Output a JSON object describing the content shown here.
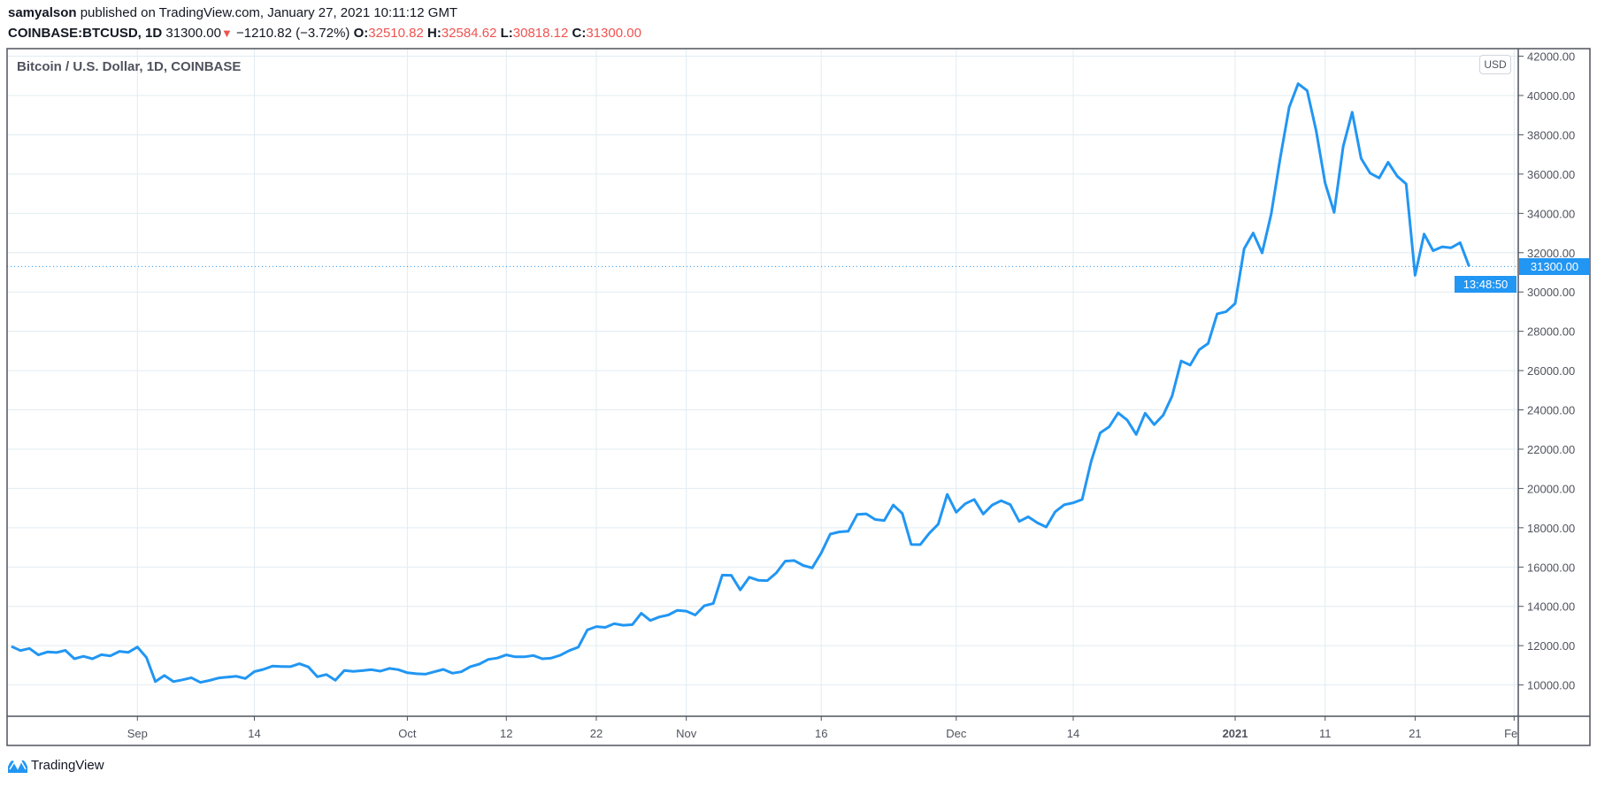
{
  "header": {
    "author": "samyalson",
    "published": "published on TradingView.com, January 27, 2021 10:11:12 GMT",
    "symbol": "COINBASE:BTCUSD, 1D",
    "last": "31300.00",
    "direction_icon": "triangle-down-icon",
    "change": "−1210.82 (−3.72%)",
    "o_label": "O:",
    "o": "32510.82",
    "h_label": "H:",
    "h": "32584.62",
    "l_label": "L:",
    "l": "30818.12",
    "c_label": "C:",
    "c": "31300.00"
  },
  "colors": {
    "line": "#2196f3",
    "down": "#ef5350",
    "grid": "#e1ecf2",
    "axis": "#50535e"
  },
  "price_axis": {
    "currency": "USD",
    "last_price": "31300.00",
    "countdown": "13:48:50"
  },
  "footer": {
    "brand": "TradingView"
  },
  "chart_data": {
    "type": "line",
    "title": "Bitcoin / U.S. Dollar, 1D, COINBASE",
    "ylim": [
      8000,
      42000
    ],
    "grid": true,
    "y_ticks": [
      "42000.00",
      "40000.00",
      "38000.00",
      "36000.00",
      "34000.00",
      "32000.00",
      "30000.00",
      "28000.00",
      "26000.00",
      "24000.00",
      "22000.00",
      "20000.00",
      "18000.00",
      "16000.00",
      "14000.00",
      "12000.00",
      "10000.00"
    ],
    "x_ticks": [
      {
        "date": "2020-09-01",
        "label": "Sep"
      },
      {
        "date": "2020-09-14",
        "label": "14"
      },
      {
        "date": "2020-10-01",
        "label": "Oct"
      },
      {
        "date": "2020-10-12",
        "label": "12"
      },
      {
        "date": "2020-10-22",
        "label": "22"
      },
      {
        "date": "2020-11-01",
        "label": "Nov"
      },
      {
        "date": "2020-11-16",
        "label": "16"
      },
      {
        "date": "2020-12-01",
        "label": "Dec"
      },
      {
        "date": "2020-12-14",
        "label": "14"
      },
      {
        "date": "2021-01-01",
        "label": "2021",
        "bold": true
      },
      {
        "date": "2021-01-11",
        "label": "11"
      },
      {
        "date": "2021-01-21",
        "label": "21"
      },
      {
        "date": "2021-02-01",
        "label": "Feb"
      }
    ],
    "series": [
      {
        "points": [
          [
            "2020-08-18",
            11960
          ],
          [
            "2020-08-19",
            11750
          ],
          [
            "2020-08-20",
            11860
          ],
          [
            "2020-08-21",
            11530
          ],
          [
            "2020-08-22",
            11680
          ],
          [
            "2020-08-23",
            11650
          ],
          [
            "2020-08-24",
            11760
          ],
          [
            "2020-08-25",
            11330
          ],
          [
            "2020-08-26",
            11460
          ],
          [
            "2020-08-27",
            11330
          ],
          [
            "2020-08-28",
            11540
          ],
          [
            "2020-08-29",
            11480
          ],
          [
            "2020-08-30",
            11710
          ],
          [
            "2020-08-31",
            11660
          ],
          [
            "2020-09-01",
            11930
          ],
          [
            "2020-09-02",
            11400
          ],
          [
            "2020-09-03",
            10170
          ],
          [
            "2020-09-04",
            10480
          ],
          [
            "2020-09-05",
            10170
          ],
          [
            "2020-09-06",
            10260
          ],
          [
            "2020-09-07",
            10370
          ],
          [
            "2020-09-08",
            10130
          ],
          [
            "2020-09-09",
            10230
          ],
          [
            "2020-09-10",
            10350
          ],
          [
            "2020-09-11",
            10400
          ],
          [
            "2020-09-12",
            10440
          ],
          [
            "2020-09-13",
            10330
          ],
          [
            "2020-09-14",
            10680
          ],
          [
            "2020-09-15",
            10790
          ],
          [
            "2020-09-16",
            10960
          ],
          [
            "2020-09-17",
            10940
          ],
          [
            "2020-09-18",
            10930
          ],
          [
            "2020-09-19",
            11080
          ],
          [
            "2020-09-20",
            10920
          ],
          [
            "2020-09-21",
            10420
          ],
          [
            "2020-09-22",
            10530
          ],
          [
            "2020-09-23",
            10240
          ],
          [
            "2020-09-24",
            10740
          ],
          [
            "2020-09-25",
            10690
          ],
          [
            "2020-09-26",
            10730
          ],
          [
            "2020-09-27",
            10780
          ],
          [
            "2020-09-28",
            10700
          ],
          [
            "2020-09-29",
            10840
          ],
          [
            "2020-09-30",
            10780
          ],
          [
            "2020-10-01",
            10620
          ],
          [
            "2020-10-02",
            10570
          ],
          [
            "2020-10-03",
            10550
          ],
          [
            "2020-10-04",
            10670
          ],
          [
            "2020-10-05",
            10790
          ],
          [
            "2020-10-06",
            10600
          ],
          [
            "2020-10-07",
            10670
          ],
          [
            "2020-10-08",
            10930
          ],
          [
            "2020-10-09",
            11060
          ],
          [
            "2020-10-10",
            11300
          ],
          [
            "2020-10-11",
            11370
          ],
          [
            "2020-10-12",
            11530
          ],
          [
            "2020-10-13",
            11430
          ],
          [
            "2020-10-14",
            11430
          ],
          [
            "2020-10-15",
            11500
          ],
          [
            "2020-10-16",
            11330
          ],
          [
            "2020-10-17",
            11370
          ],
          [
            "2020-10-18",
            11510
          ],
          [
            "2020-10-19",
            11750
          ],
          [
            "2020-10-20",
            11920
          ],
          [
            "2020-10-21",
            12800
          ],
          [
            "2020-10-22",
            12970
          ],
          [
            "2020-10-23",
            12930
          ],
          [
            "2020-10-24",
            13120
          ],
          [
            "2020-10-25",
            13040
          ],
          [
            "2020-10-26",
            13070
          ],
          [
            "2020-10-27",
            13650
          ],
          [
            "2020-10-28",
            13280
          ],
          [
            "2020-10-29",
            13460
          ],
          [
            "2020-10-30",
            13560
          ],
          [
            "2020-10-31",
            13800
          ],
          [
            "2020-11-01",
            13760
          ],
          [
            "2020-11-02",
            13560
          ],
          [
            "2020-11-03",
            14030
          ],
          [
            "2020-11-04",
            14150
          ],
          [
            "2020-11-05",
            15590
          ],
          [
            "2020-11-06",
            15580
          ],
          [
            "2020-11-07",
            14840
          ],
          [
            "2020-11-08",
            15480
          ],
          [
            "2020-11-09",
            15330
          ],
          [
            "2020-11-10",
            15310
          ],
          [
            "2020-11-11",
            15700
          ],
          [
            "2020-11-12",
            16300
          ],
          [
            "2020-11-13",
            16330
          ],
          [
            "2020-11-14",
            16080
          ],
          [
            "2020-11-15",
            15960
          ],
          [
            "2020-11-16",
            16720
          ],
          [
            "2020-11-17",
            17680
          ],
          [
            "2020-11-18",
            17790
          ],
          [
            "2020-11-19",
            17820
          ],
          [
            "2020-11-20",
            18680
          ],
          [
            "2020-11-21",
            18710
          ],
          [
            "2020-11-22",
            18420
          ],
          [
            "2020-11-23",
            18370
          ],
          [
            "2020-11-24",
            19160
          ],
          [
            "2020-11-25",
            18730
          ],
          [
            "2020-11-26",
            17150
          ],
          [
            "2020-11-27",
            17140
          ],
          [
            "2020-11-28",
            17720
          ],
          [
            "2020-11-29",
            18180
          ],
          [
            "2020-11-30",
            19700
          ],
          [
            "2020-12-01",
            18790
          ],
          [
            "2020-12-02",
            19220
          ],
          [
            "2020-12-03",
            19440
          ],
          [
            "2020-12-04",
            18700
          ],
          [
            "2020-12-05",
            19160
          ],
          [
            "2020-12-06",
            19380
          ],
          [
            "2020-12-07",
            19180
          ],
          [
            "2020-12-08",
            18320
          ],
          [
            "2020-12-09",
            18560
          ],
          [
            "2020-12-10",
            18260
          ],
          [
            "2020-12-11",
            18040
          ],
          [
            "2020-12-12",
            18810
          ],
          [
            "2020-12-13",
            19170
          ],
          [
            "2020-12-14",
            19270
          ],
          [
            "2020-12-15",
            19440
          ],
          [
            "2020-12-16",
            21380
          ],
          [
            "2020-12-17",
            22830
          ],
          [
            "2020-12-18",
            23140
          ],
          [
            "2020-12-19",
            23850
          ],
          [
            "2020-12-20",
            23480
          ],
          [
            "2020-12-21",
            22750
          ],
          [
            "2020-12-22",
            23830
          ],
          [
            "2020-12-23",
            23250
          ],
          [
            "2020-12-24",
            23730
          ],
          [
            "2020-12-25",
            24710
          ],
          [
            "2020-12-26",
            26490
          ],
          [
            "2020-12-27",
            26280
          ],
          [
            "2020-12-28",
            27060
          ],
          [
            "2020-12-29",
            27380
          ],
          [
            "2020-12-30",
            28890
          ],
          [
            "2020-12-31",
            29000
          ],
          [
            "2021-01-01",
            29410
          ],
          [
            "2021-01-02",
            32200
          ],
          [
            "2021-01-03",
            33000
          ],
          [
            "2021-01-04",
            31990
          ],
          [
            "2021-01-05",
            33950
          ],
          [
            "2021-01-06",
            36800
          ],
          [
            "2021-01-07",
            39400
          ],
          [
            "2021-01-08",
            40600
          ],
          [
            "2021-01-09",
            40250
          ],
          [
            "2021-01-10",
            38200
          ],
          [
            "2021-01-11",
            35550
          ],
          [
            "2021-01-12",
            34050
          ],
          [
            "2021-01-13",
            37400
          ],
          [
            "2021-01-14",
            39150
          ],
          [
            "2021-01-15",
            36800
          ],
          [
            "2021-01-16",
            36050
          ],
          [
            "2021-01-17",
            35800
          ],
          [
            "2021-01-18",
            36600
          ],
          [
            "2021-01-19",
            35900
          ],
          [
            "2021-01-20",
            35500
          ],
          [
            "2021-01-21",
            30850
          ],
          [
            "2021-01-22",
            32950
          ],
          [
            "2021-01-23",
            32100
          ],
          [
            "2021-01-24",
            32300
          ],
          [
            "2021-01-25",
            32250
          ],
          [
            "2021-01-26",
            32510
          ],
          [
            "2021-01-27",
            31300
          ]
        ]
      }
    ]
  }
}
